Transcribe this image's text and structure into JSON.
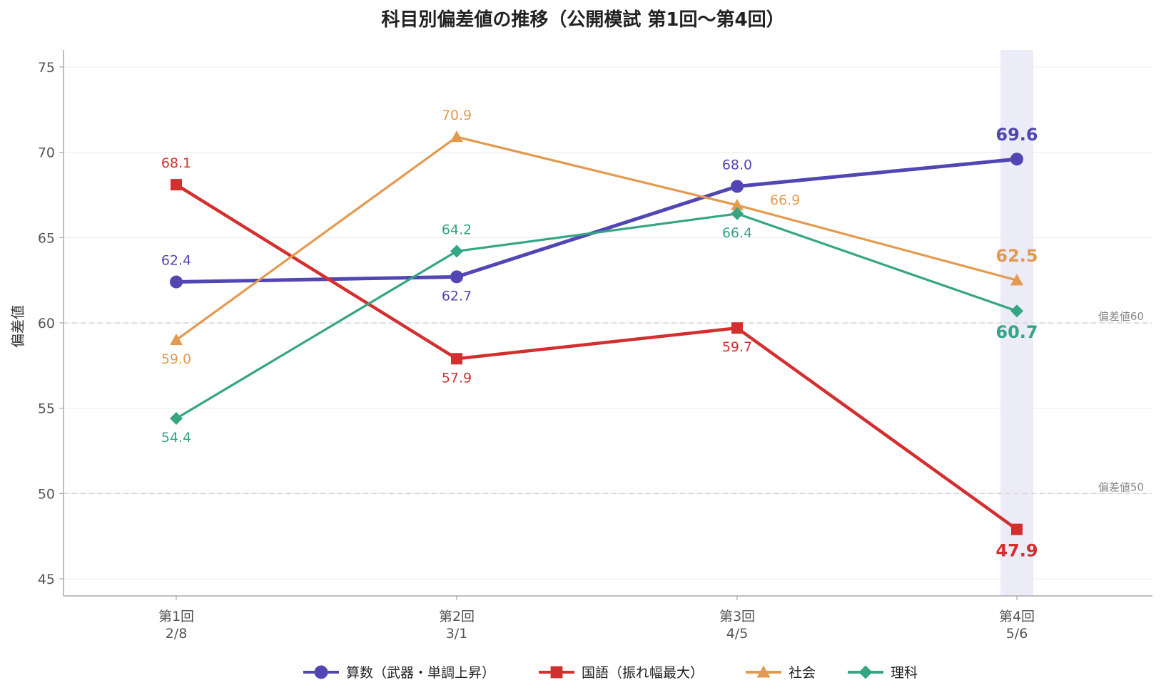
{
  "chart_data": {
    "type": "line",
    "title": "科目別偏差値の推移（公開模試 第1回〜第4回）",
    "ylabel": "偏差値",
    "ylim": [
      44,
      76
    ],
    "yticks": [
      45,
      50,
      55,
      60,
      65,
      70,
      75
    ],
    "grid": true,
    "categories": [
      {
        "line1": "第1回",
        "line2": "2/8"
      },
      {
        "line1": "第2回",
        "line2": "3/1"
      },
      {
        "line1": "第3回",
        "line2": "4/5"
      },
      {
        "line1": "第4回",
        "line2": "5/6"
      }
    ],
    "highlight_category": 3,
    "reference_lines": [
      {
        "value": 60,
        "label": "偏差値60"
      },
      {
        "value": 50,
        "label": "偏差値50"
      }
    ],
    "legend_position": "bottom-center",
    "series": [
      {
        "name": "算数（武器・単調上昇）",
        "values": [
          62.4,
          62.7,
          68.0,
          69.6
        ],
        "labels": [
          "62.4",
          "62.7",
          "68.0",
          "69.6"
        ],
        "color": "#5146b4",
        "marker": "circle",
        "label_pos": [
          "above",
          "below",
          "above",
          "above"
        ]
      },
      {
        "name": "国語（振れ幅最大）",
        "values": [
          68.1,
          57.9,
          59.7,
          47.9
        ],
        "labels": [
          "68.1",
          "57.9",
          "59.7",
          "47.9"
        ],
        "color": "#d32f2f",
        "marker": "square",
        "label_pos": [
          "above",
          "below",
          "below",
          "below"
        ]
      },
      {
        "name": "社会",
        "values": [
          59.0,
          70.9,
          66.9,
          62.5
        ],
        "labels": [
          "59.0",
          "70.9",
          "66.9",
          "62.5"
        ],
        "color": "#e39a4f",
        "marker": "triangle",
        "label_pos": [
          "below",
          "above",
          "right",
          "above"
        ]
      },
      {
        "name": "理科",
        "values": [
          54.4,
          64.2,
          66.4,
          60.7
        ],
        "labels": [
          "54.4",
          "64.2",
          "66.4",
          "60.7"
        ],
        "color": "#35a583",
        "marker": "diamond",
        "label_pos": [
          "below",
          "above",
          "below",
          "below"
        ]
      }
    ]
  }
}
